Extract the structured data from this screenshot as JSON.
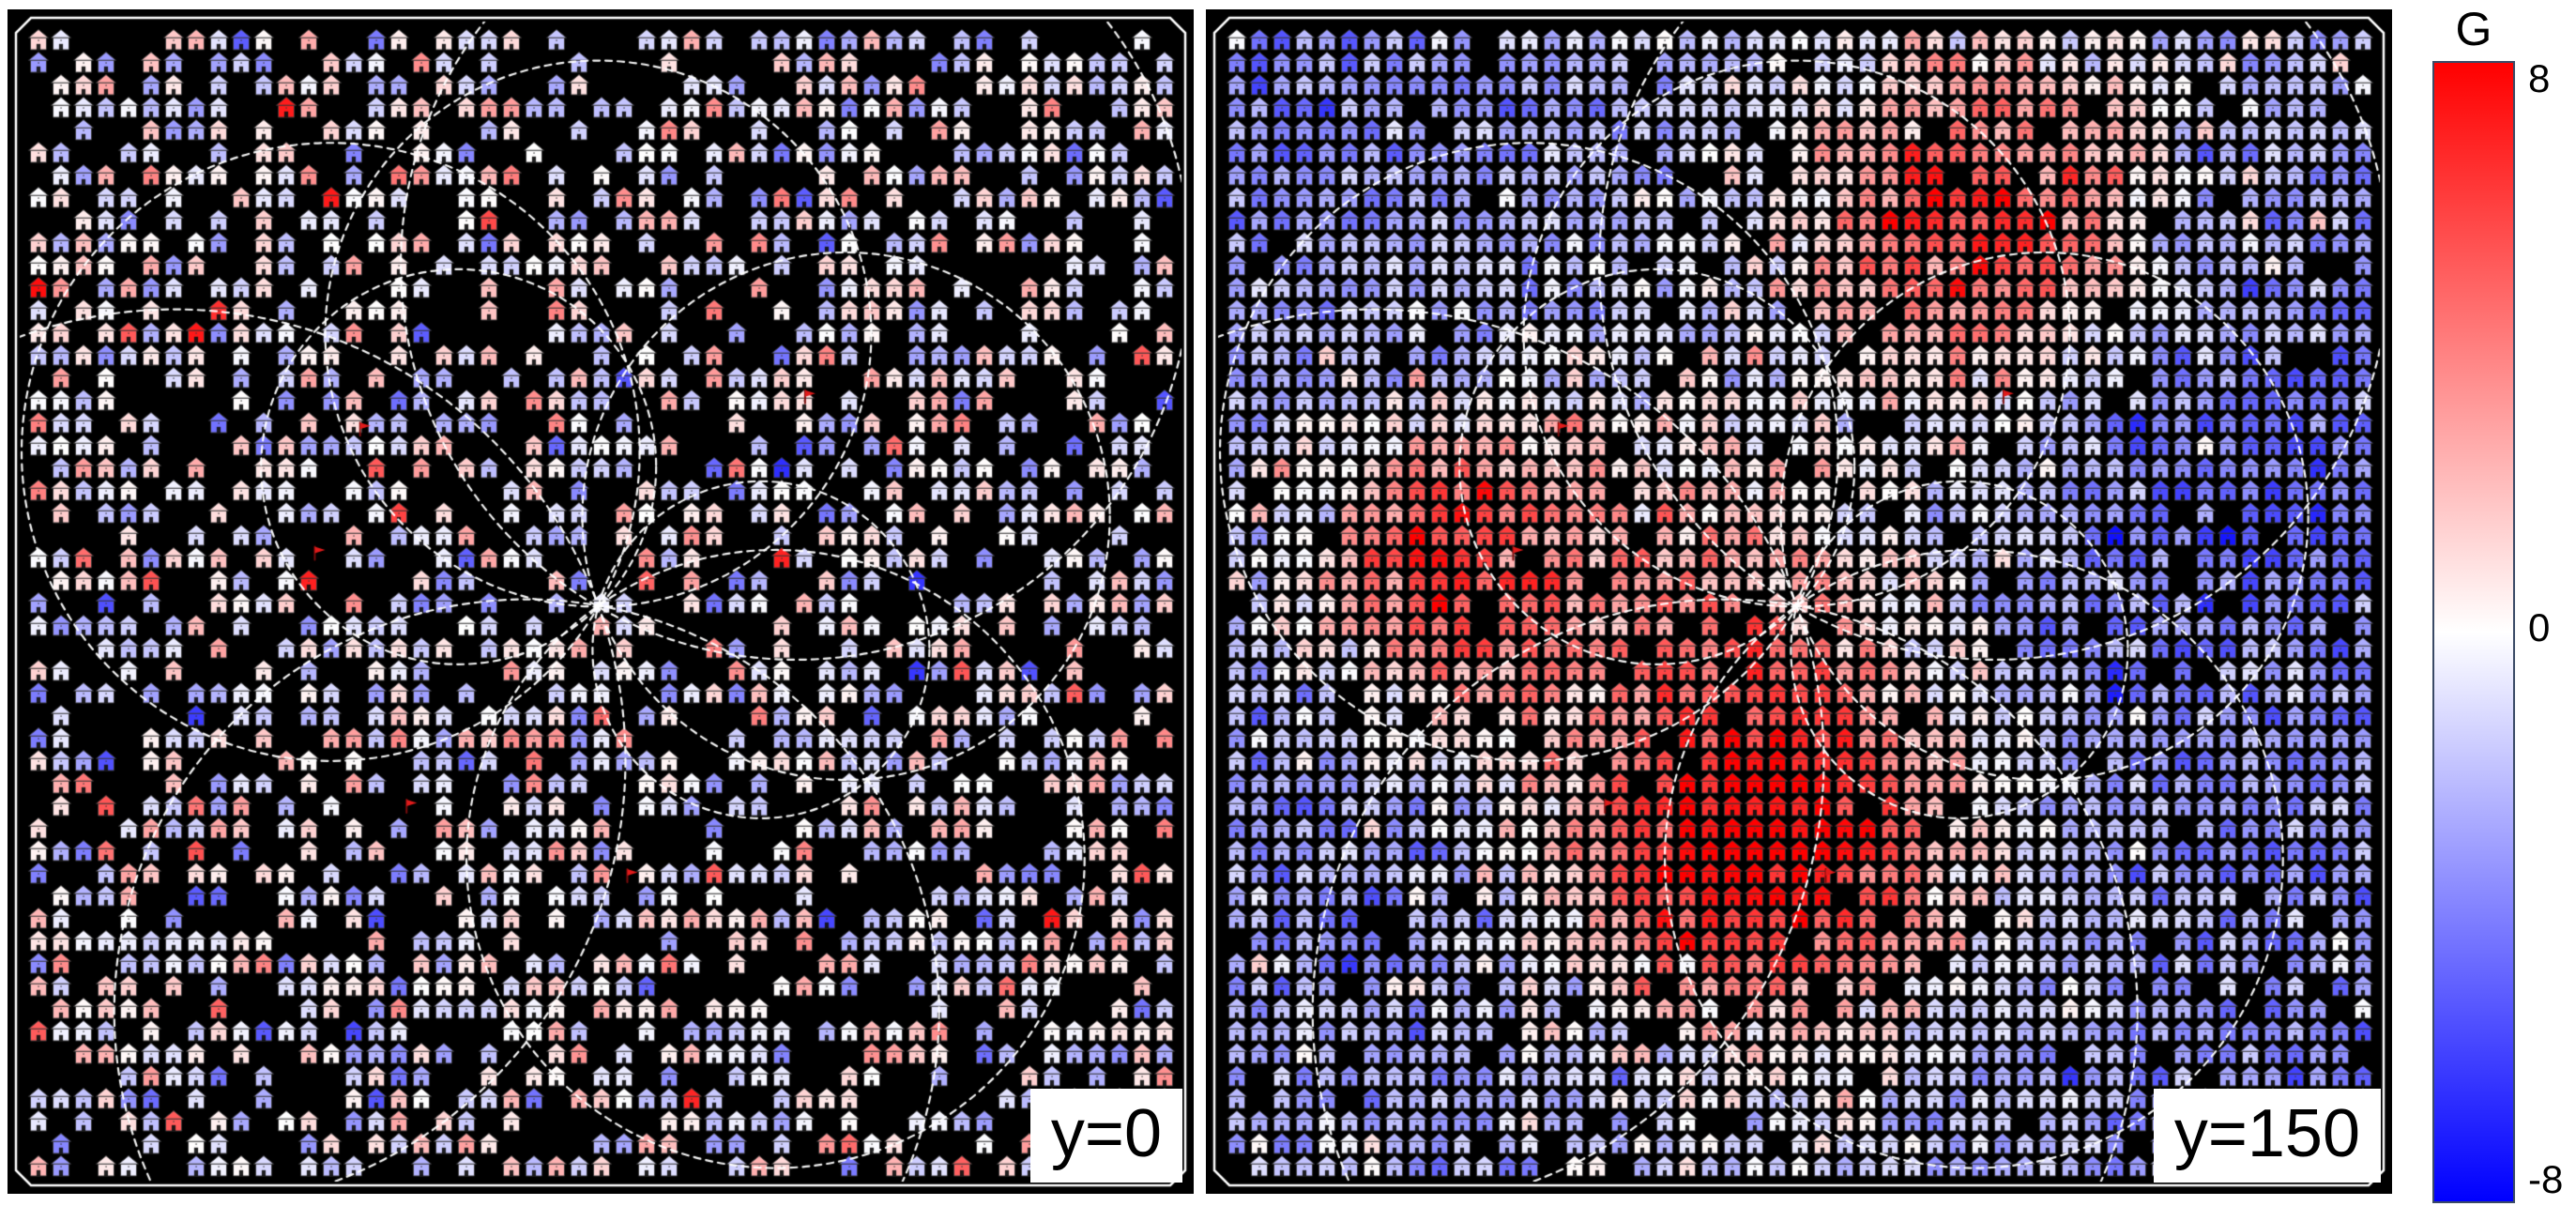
{
  "figure": {
    "background": "#ffffff",
    "panel_background": "#000000"
  },
  "panels": [
    {
      "label": "y=0"
    },
    {
      "label": "y=150"
    }
  ],
  "colorbar": {
    "title": "G",
    "ticks": [
      "8",
      "0",
      "-8"
    ],
    "vmax": 8,
    "vmin": -8,
    "colors_top_to_bottom": [
      "#ff0000",
      "#ffffff",
      "#0000ff"
    ]
  },
  "chart_data": {
    "type": "heatmap",
    "subtype": "glyph-grid-heatmap",
    "marker": "house-icon",
    "extra_markers": "flag-icon",
    "title": "",
    "value_label": "G",
    "value_range": [
      -8,
      8
    ],
    "colormap": "bwr (blue-white-red)",
    "panel_background": "#000000",
    "grid": {
      "step": 24,
      "glyph_w": 20,
      "glyph_h": 21
    },
    "frame": {
      "content_inset": 13,
      "border_inset": 9,
      "border_chamfer": 16,
      "border_color": "#ffffff",
      "border_width": 2.5
    },
    "epicenter": {
      "x": 0.498,
      "y": 0.504
    },
    "circles_note": "white dashed circles all passing through the epicenter; angle = direction of circle center from epicenter, r = radius as fraction of panel size",
    "circles": [
      {
        "angle_deg": -90,
        "r": 0.235
      },
      {
        "angle_deg": -20,
        "r": 0.227
      },
      {
        "angle_deg": 100,
        "r": 0.355
      },
      {
        "angle_deg": -150,
        "r": 0.266
      },
      {
        "angle_deg": -135,
        "r": 0.17
      },
      {
        "angle_deg": 160,
        "r": 0.388
      },
      {
        "angle_deg": 55,
        "r": 0.266
      },
      {
        "angle_deg": 15,
        "r": 0.145
      },
      {
        "angle_deg": -60,
        "r": 0.34
      }
    ],
    "flags": [
      {
        "x": 0.293,
        "y": 0.357
      },
      {
        "x": 0.333,
        "y": 0.682
      },
      {
        "x": 0.523,
        "y": 0.742
      },
      {
        "x": 0.676,
        "y": 0.329
      },
      {
        "x": 0.254,
        "y": 0.464
      }
    ],
    "panels": [
      {
        "label": "y=0",
        "seed": 42,
        "density": 0.63,
        "field": "random",
        "mean": -0.3,
        "sigma": 2.1,
        "red_outlier_prob": 0.012
      },
      {
        "label": "y=150",
        "seed": 7,
        "density": 0.93,
        "field": "blobs",
        "baseline": -1.6,
        "noise_sigma": 1.3,
        "blobs": [
          {
            "x": 0.47,
            "y": 0.7,
            "s": 0.115,
            "a": 11.0
          },
          {
            "x": 0.66,
            "y": 0.17,
            "s": 0.1,
            "a": 9.0
          },
          {
            "x": 0.2,
            "y": 0.47,
            "s": 0.085,
            "a": 8.5
          },
          {
            "x": 0.44,
            "y": 0.45,
            "s": 0.1,
            "a": 3.5
          },
          {
            "x": 0.92,
            "y": 0.4,
            "s": 0.18,
            "a": -3.0
          },
          {
            "x": 0.08,
            "y": 0.1,
            "s": 0.15,
            "a": -2.0
          },
          {
            "x": 0.95,
            "y": 0.95,
            "s": 0.2,
            "a": -2.0
          },
          {
            "x": 0.05,
            "y": 0.78,
            "s": 0.18,
            "a": -1.5
          }
        ]
      }
    ]
  }
}
